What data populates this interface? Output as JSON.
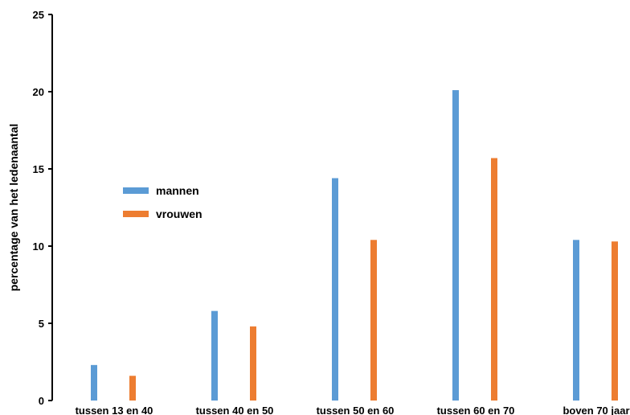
{
  "chart_data": {
    "type": "bar",
    "categories": [
      "tussen 13 en 40",
      "tussen 40 en 50",
      "tussen 50 en 60",
      "tussen 60 en 70",
      "boven 70 jaar"
    ],
    "series": [
      {
        "name": "mannen",
        "color": "#5b9bd5",
        "values": [
          2.3,
          5.8,
          14.4,
          20.1,
          10.4
        ]
      },
      {
        "name": "vrouwen",
        "color": "#ed7d31",
        "values": [
          1.6,
          4.8,
          10.4,
          15.7,
          10.3
        ]
      }
    ],
    "xlabel": "",
    "ylabel": "percentage van het ledenaantal",
    "ylim": [
      0,
      25
    ],
    "yticks": [
      0,
      5,
      10,
      15,
      20,
      25
    ],
    "grid": false,
    "legend_position": "left"
  }
}
